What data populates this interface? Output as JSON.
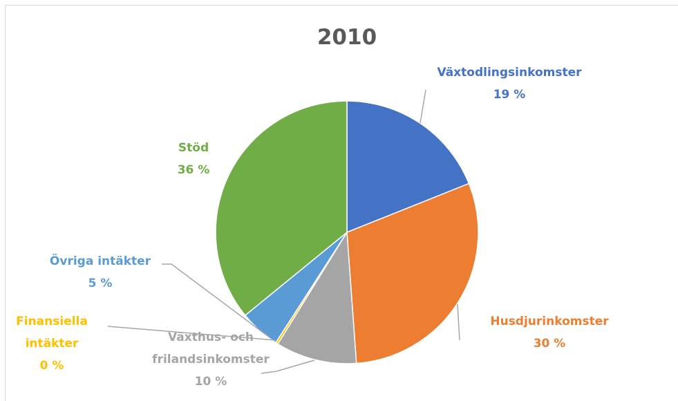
{
  "chart_data": {
    "type": "pie",
    "title": "2010",
    "categories": [
      "Växtodlingsinkomster",
      "Husdjurinkomster",
      "Växthus- och frilandsinkomster",
      "Finansiella intäkter",
      "Övriga intäkter",
      "Stöd"
    ],
    "values": [
      19,
      30,
      10,
      0.3,
      5,
      36
    ],
    "value_labels": [
      "19 %",
      "30 %",
      "10 %",
      "0 %",
      "5 %",
      "36 %"
    ],
    "colors": [
      "#4472c4",
      "#ed7d31",
      "#a5a5a5",
      "#ffc000",
      "#5b9bd5",
      "#70ad47"
    ]
  }
}
